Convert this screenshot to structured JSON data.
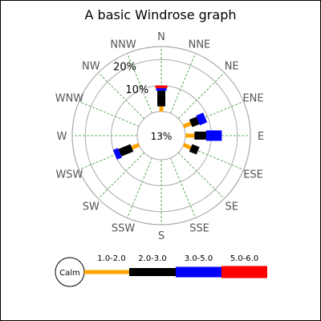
{
  "chart_data": {
    "type": "windrose",
    "title": "A basic Windrose graph",
    "calm_value": 13,
    "calm_label": "13%",
    "directions": [
      "N",
      "NNE",
      "NE",
      "ENE",
      "E",
      "ESE",
      "SE",
      "SSE",
      "S",
      "SSW",
      "SW",
      "WSW",
      "W",
      "WNW",
      "NW",
      "NNW"
    ],
    "rings": [
      {
        "value": 10,
        "label": "10%"
      },
      {
        "value": 20,
        "label": "20%"
      }
    ],
    "r_max": 25,
    "legend": {
      "calm_label": "Calm",
      "bins": [
        "1.0-2.0",
        "2.0-3.0",
        "3.0-5.0",
        "5.0-6.0"
      ]
    },
    "colors": {
      "bins": [
        "#ffa500",
        "#000000",
        "#0000ff",
        "#ff0000"
      ],
      "grid": "#aaaaaa",
      "spokes": "#339933",
      "direction_label": "#555555"
    },
    "series": [
      {
        "direction": "N",
        "values": [
          2.0,
          6.0,
          1.0,
          1.0
        ]
      },
      {
        "direction": "ENE",
        "values": [
          3.0,
          3.0,
          3.0,
          0
        ]
      },
      {
        "direction": "E",
        "values": [
          3.5,
          4.5,
          6.0,
          0
        ]
      },
      {
        "direction": "ESE",
        "values": [
          3.0,
          3.0,
          0,
          0
        ]
      },
      {
        "direction": "WSW",
        "values": [
          3.0,
          5.0,
          2.0,
          0
        ]
      }
    ]
  }
}
